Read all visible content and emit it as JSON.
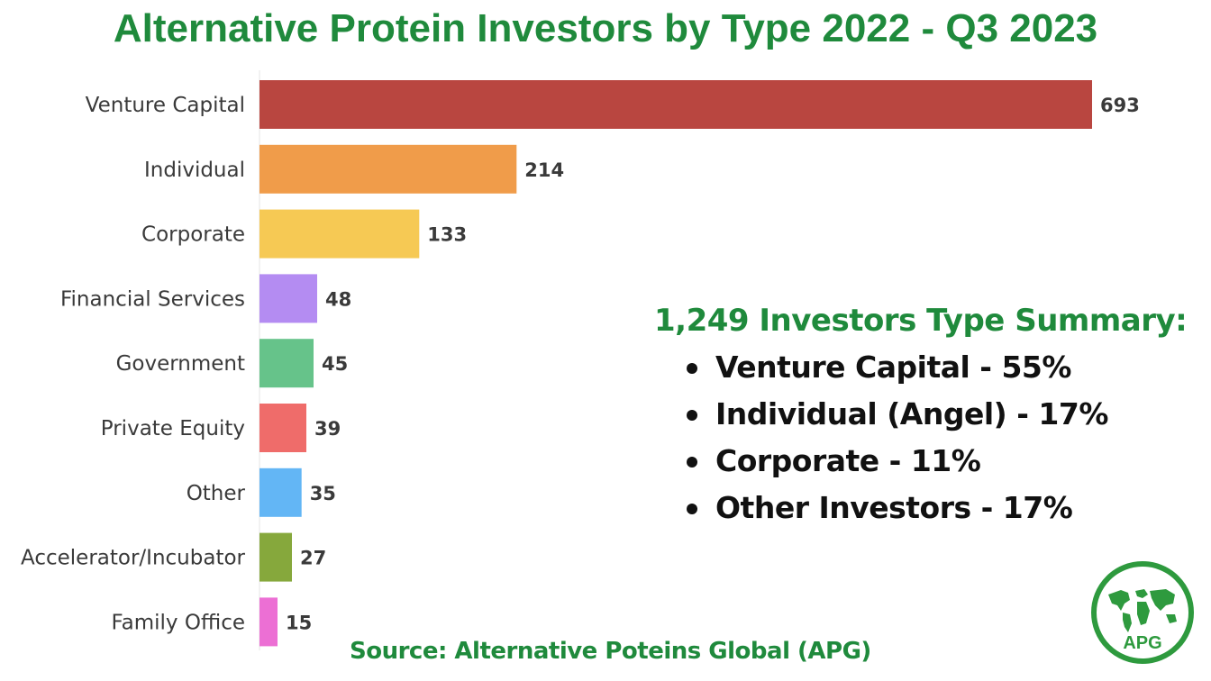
{
  "title": "Alternative Protein Investors by Type 2022 - Q3 2023",
  "chart_data": {
    "type": "bar",
    "orientation": "horizontal",
    "title": "Alternative Protein Investors by Type 2022 - Q3 2023",
    "categories": [
      "Venture Capital",
      "Individual",
      "Corporate",
      "Financial Services",
      "Government",
      "Private Equity",
      "Other",
      "Accelerator/Incubator",
      "Family Office"
    ],
    "values": [
      693,
      214,
      133,
      48,
      45,
      39,
      35,
      27,
      15
    ],
    "colors": [
      "#b94640",
      "#f09c4a",
      "#f6c954",
      "#b48cf2",
      "#66c38a",
      "#ef6c6a",
      "#63b6f5",
      "#86a83c",
      "#ec6fd4"
    ],
    "xlim": [
      0,
      693
    ],
    "grid": false,
    "legend": false,
    "data_labels": true
  },
  "summary": {
    "title": "1,249 Investors Type Summary:",
    "items": [
      "Venture Capital - 55%",
      "Individual (Angel) - 17%",
      "Corporate - 11%",
      "Other Investors - 17%"
    ]
  },
  "source": "Source: Alternative Poteins Global (APG)",
  "logo": {
    "text": "APG",
    "icon": "world-map-icon",
    "color": "#2e9a3e"
  }
}
